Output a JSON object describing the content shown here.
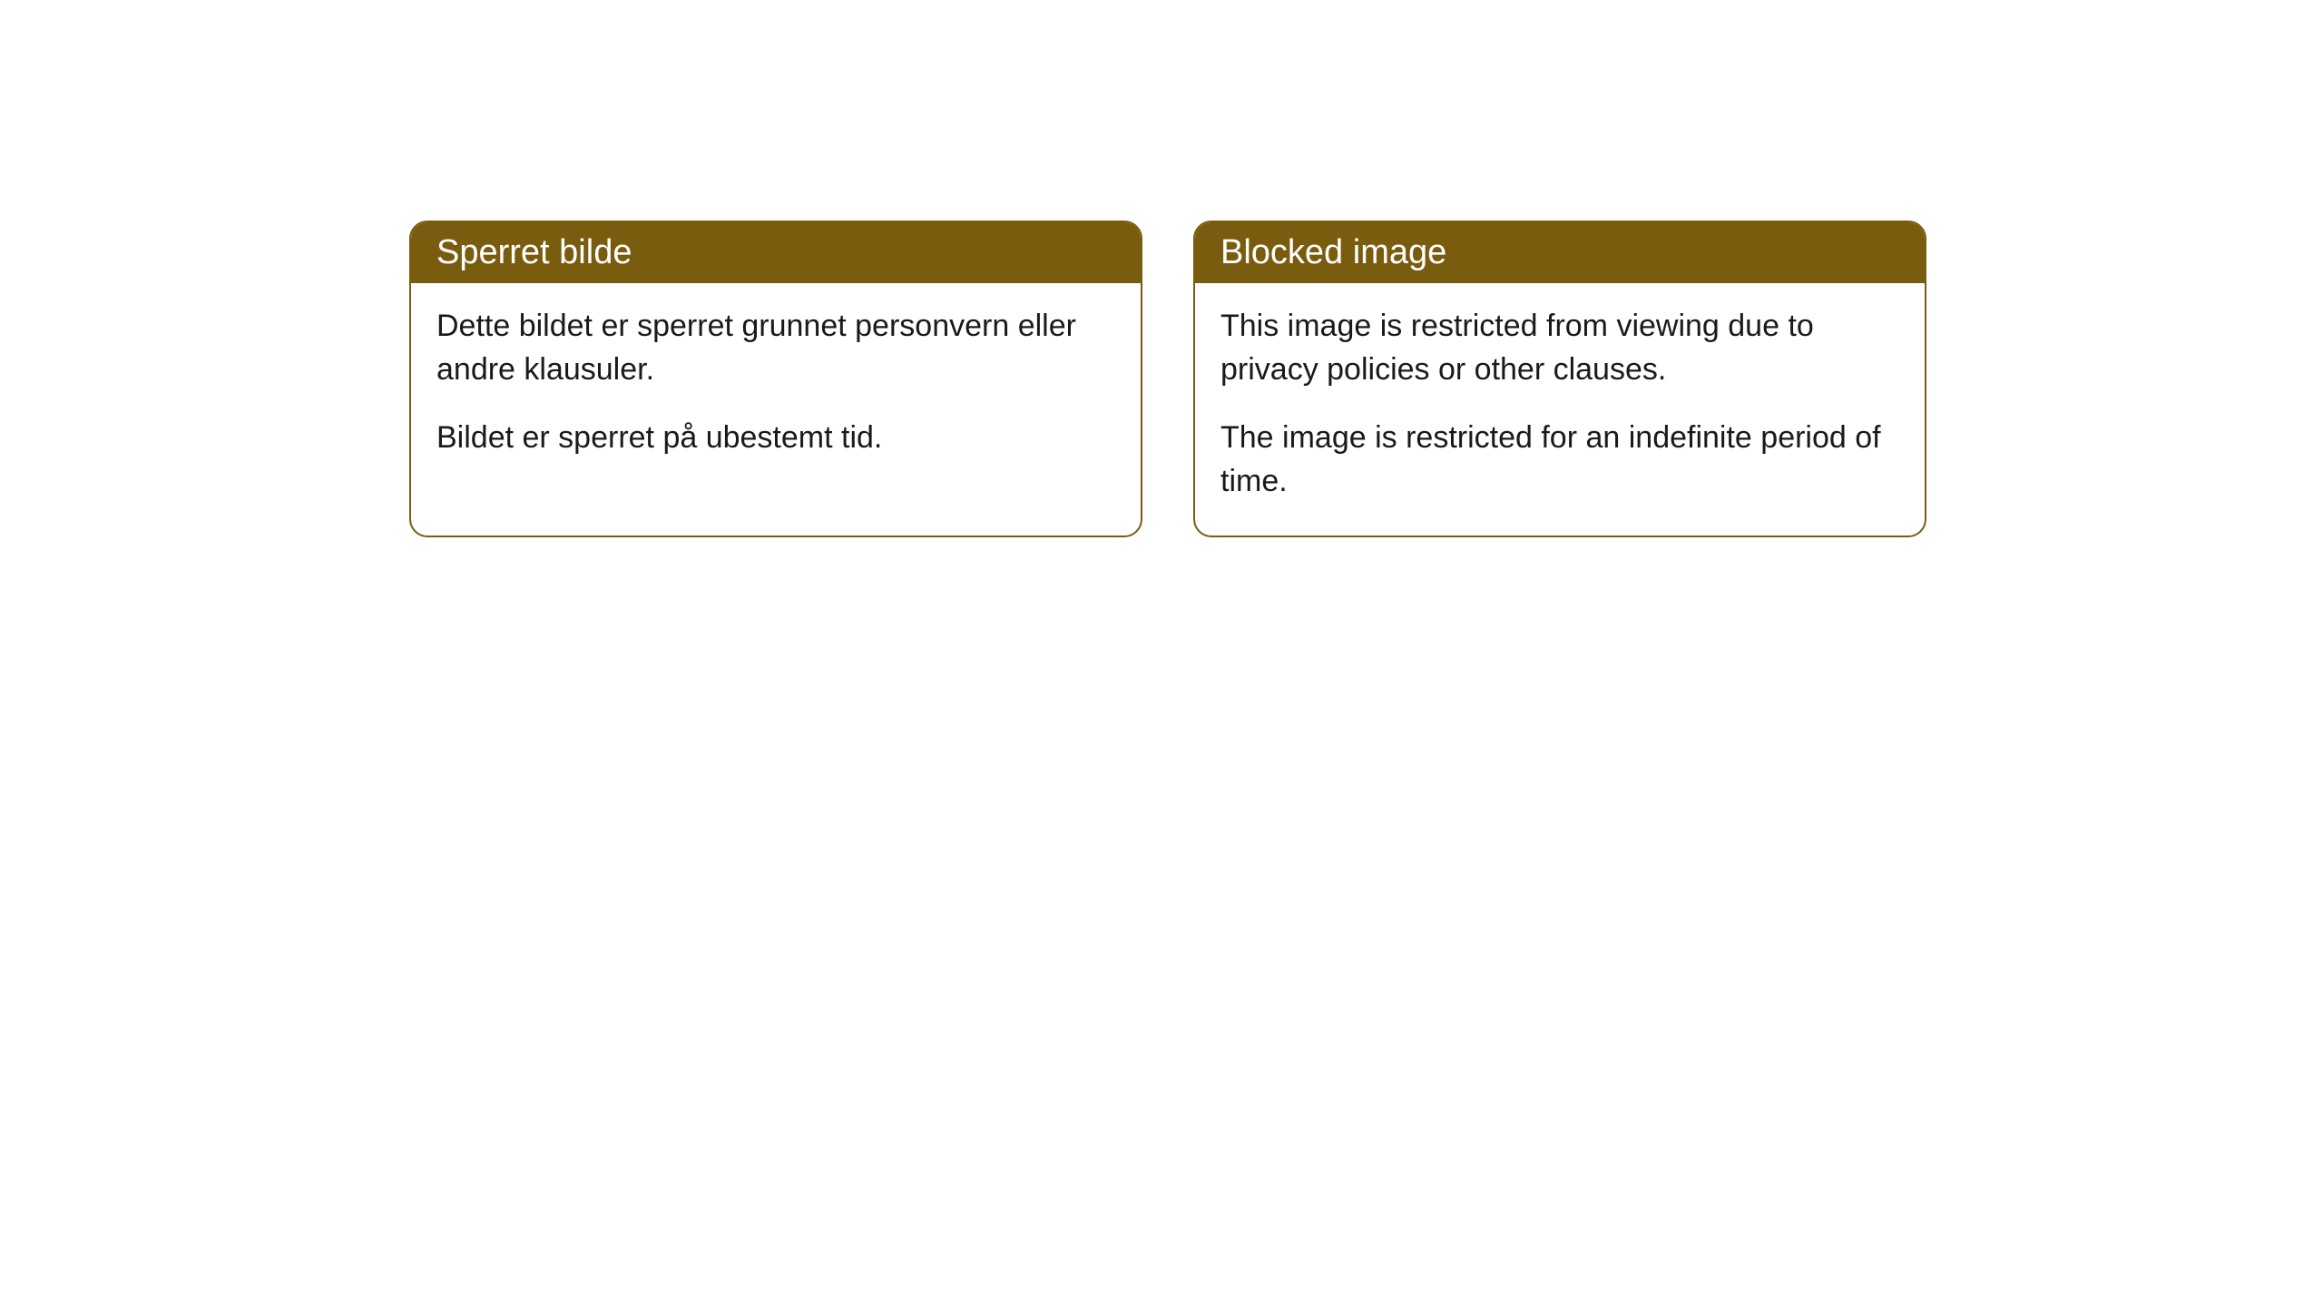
{
  "cards": [
    {
      "title": "Sperret bilde",
      "paragraph1": "Dette bildet er sperret grunnet personvern eller andre klausuler.",
      "paragraph2": "Bildet er sperret på ubestemt tid."
    },
    {
      "title": "Blocked image",
      "paragraph1": "This image is restricted from viewing due to privacy policies or other clauses.",
      "paragraph2": "The image is restricted for an indefinite period of time."
    }
  ],
  "styling": {
    "header_background_color": "#7a5c0f",
    "header_text_color": "#ffffff",
    "border_color": "#7a5c0f",
    "body_text_color": "#1a1a1a",
    "card_background_color": "#ffffff",
    "page_background_color": "#ffffff",
    "border_radius": 20,
    "header_fontsize": 38,
    "body_fontsize": 34
  }
}
